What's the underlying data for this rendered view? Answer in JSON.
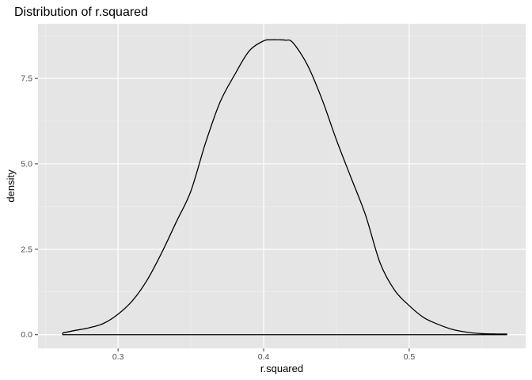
{
  "chart_data": {
    "type": "area",
    "title": "Distribution of r.squared",
    "xlabel": "r.squared",
    "ylabel": "density",
    "xlim": [
      0.245,
      0.58
    ],
    "ylim": [
      -0.4,
      9.1
    ],
    "x_ticks": [
      {
        "value": 0.3,
        "label": "0.3"
      },
      {
        "value": 0.4,
        "label": "0.4"
      },
      {
        "value": 0.5,
        "label": "0.5"
      }
    ],
    "y_ticks": [
      {
        "value": 0.0,
        "label": "0.0"
      },
      {
        "value": 2.5,
        "label": "2.5"
      },
      {
        "value": 5.0,
        "label": "5.0"
      },
      {
        "value": 7.5,
        "label": "7.5"
      }
    ],
    "grid": true,
    "legend": "none",
    "colors": {
      "panel_background": "#e5e5e5",
      "grid_major": "#ffffff",
      "grid_minor": "#f2f2f2",
      "line": "#000000",
      "tick_text": "#4d4d4d"
    },
    "series": [
      {
        "x": [
          0.262,
          0.27,
          0.28,
          0.29,
          0.3,
          0.31,
          0.32,
          0.33,
          0.34,
          0.35,
          0.36,
          0.37,
          0.38,
          0.39,
          0.4,
          0.405,
          0.41,
          0.415,
          0.42,
          0.43,
          0.44,
          0.45,
          0.46,
          0.47,
          0.48,
          0.49,
          0.5,
          0.51,
          0.52,
          0.53,
          0.54,
          0.55,
          0.56,
          0.567
        ],
        "y": [
          0.05,
          0.12,
          0.2,
          0.33,
          0.6,
          1.0,
          1.6,
          2.4,
          3.3,
          4.2,
          5.6,
          6.8,
          7.6,
          8.3,
          8.6,
          8.63,
          8.63,
          8.62,
          8.55,
          7.9,
          6.9,
          5.7,
          4.6,
          3.5,
          2.1,
          1.3,
          0.85,
          0.5,
          0.3,
          0.15,
          0.07,
          0.03,
          0.02,
          0.02
        ]
      }
    ]
  }
}
